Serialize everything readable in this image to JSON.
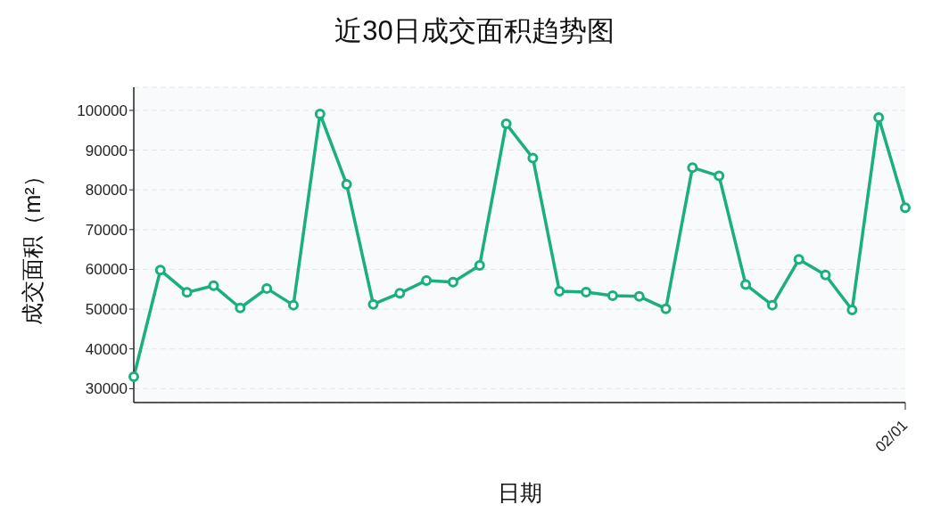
{
  "chart_data": {
    "type": "line",
    "title": "近30日成交面积趋势图",
    "xlabel": "日期",
    "ylabel": "成交面积（m²）",
    "categories": [
      null,
      null,
      null,
      null,
      null,
      null,
      null,
      null,
      null,
      null,
      null,
      null,
      null,
      null,
      null,
      null,
      null,
      null,
      null,
      null,
      null,
      null,
      null,
      null,
      null,
      null,
      null,
      null,
      null,
      "02/01"
    ],
    "series": [
      {
        "color": "#1aaf7d",
        "values": [
          33000,
          59800,
          54200,
          55900,
          50300,
          55200,
          51000,
          99100,
          81400,
          51200,
          54000,
          57200,
          56800,
          61000,
          96600,
          88000,
          54500,
          54300,
          53400,
          53200,
          50100,
          85600,
          83500,
          56200,
          51000,
          62500,
          58600,
          49800,
          98200,
          75500
        ]
      }
    ],
    "ylim": [
      26500,
      105800
    ],
    "yticks": [
      30000,
      40000,
      50000,
      60000,
      70000,
      80000,
      90000,
      100000
    ],
    "grid": "y",
    "marker": "circle",
    "line_style": "solid"
  }
}
